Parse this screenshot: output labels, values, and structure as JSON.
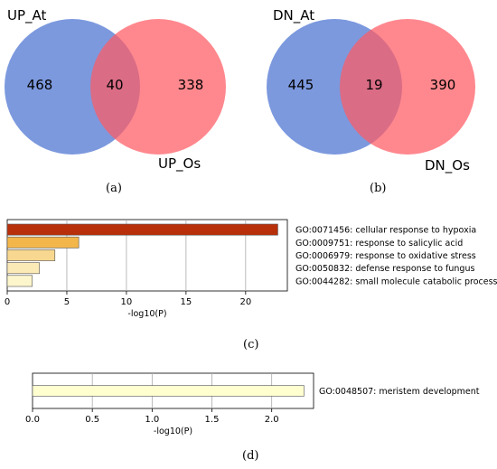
{
  "chart_data": [
    {
      "type": "venn",
      "panel": "(a)",
      "sets": [
        {
          "name": "UP_At",
          "only": 468,
          "color": "#5b7fd6"
        },
        {
          "name": "UP_Os",
          "only": 338,
          "color": "#ff6b70"
        }
      ],
      "intersection": 40
    },
    {
      "type": "venn",
      "panel": "(b)",
      "sets": [
        {
          "name": "DN_At",
          "only": 445,
          "color": "#5b7fd6"
        },
        {
          "name": "DN_Os",
          "only": 390,
          "color": "#ff6b70"
        }
      ],
      "intersection": 19
    },
    {
      "type": "bar",
      "orientation": "horizontal",
      "panel": "(c)",
      "categories": [
        "GO:0071456: cellular response to hypoxia",
        "GO:0009751: response to salicylic acid",
        "GO:0006979: response to oxidative stress",
        "GO:0050832: defense response to fungus",
        "GO:0044282: small molecule catabolic process"
      ],
      "values": [
        22.7,
        6.0,
        4.0,
        2.7,
        2.1
      ],
      "colors": [
        "#b8300a",
        "#f2b64a",
        "#f8d890",
        "#fbe9b6",
        "#fdf6cc"
      ],
      "xlabel": "-log10(P)",
      "xlim": [
        0,
        23.5
      ],
      "xticks": [
        0,
        5,
        10,
        15,
        20
      ],
      "grid": true
    },
    {
      "type": "bar",
      "orientation": "horizontal",
      "panel": "(d)",
      "categories": [
        "GO:0048507: meristem development"
      ],
      "values": [
        2.27
      ],
      "colors": [
        "#ffffd0"
      ],
      "xlabel": "-log10(P)",
      "xlim": [
        0,
        2.35
      ],
      "xticks": [
        "0.0",
        "0.5",
        "1.0",
        "1.5",
        "2.0"
      ],
      "grid": true
    }
  ]
}
